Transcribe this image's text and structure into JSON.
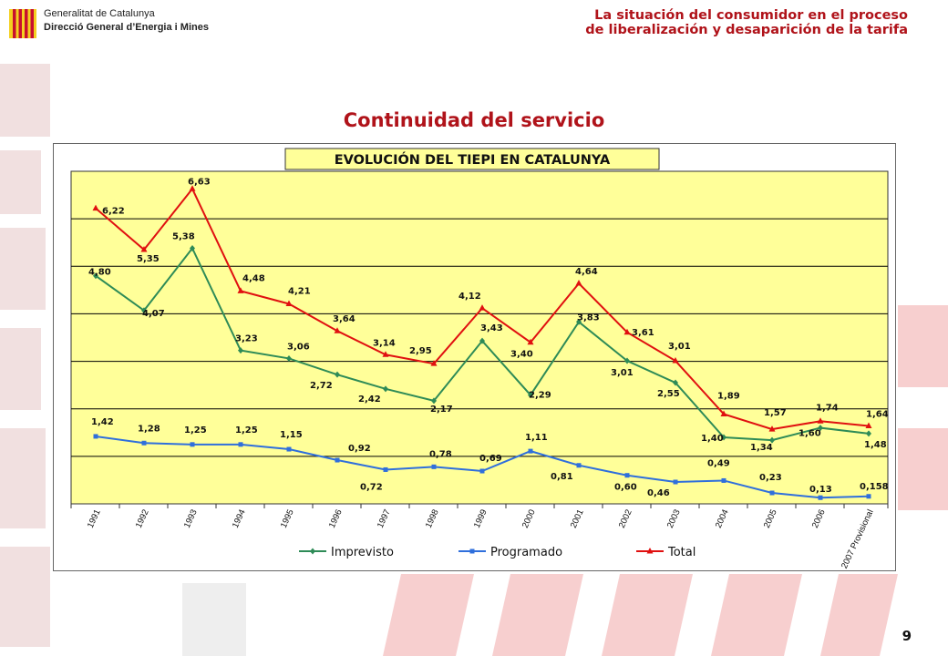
{
  "header": {
    "org_line1": "Generalitat de Catalunya",
    "org_line2": "Direcció General d’Energia i Mines",
    "title_line1": "La situación del consumidor en el proceso",
    "title_line2": "de liberalización y desaparición de la tarifa"
  },
  "slide": {
    "title": "Continuidad del servicio",
    "page_number": "9"
  },
  "colors": {
    "accent": "#b0131a",
    "plot_bg": "#ffff99",
    "imprevisto": "#2e8b57",
    "programado": "#2f6fdc",
    "total": "#e01010"
  },
  "chart_data": {
    "type": "line",
    "title": "EVOLUCIÓN DEL TIEPI EN CATALUNYA",
    "xlabel": "",
    "ylabel": "",
    "categories": [
      "1991",
      "1992",
      "1993",
      "1994",
      "1995",
      "1996",
      "1997",
      "1998",
      "1999",
      "2000",
      "2001",
      "2002",
      "2003",
      "2004",
      "2005",
      "2006",
      "2007 Provisional"
    ],
    "ylim": [
      0,
      7
    ],
    "grid": true,
    "legend_position": "bottom",
    "series": [
      {
        "name": "Imprevisto",
        "values": [
          4.8,
          4.07,
          5.38,
          3.23,
          3.06,
          2.72,
          2.42,
          2.17,
          3.43,
          2.29,
          3.83,
          3.01,
          2.55,
          1.4,
          1.34,
          1.6,
          1.48
        ],
        "labels": [
          "4,80",
          "4,07",
          "5,38",
          "3,23",
          "3,06",
          "2,72",
          "2,42",
          "2,17",
          "3,43",
          "2,29",
          "3,83",
          "3,01",
          "2,55",
          "1,40",
          "1,34",
          "1,60",
          "1,48"
        ]
      },
      {
        "name": "Programado",
        "values": [
          1.42,
          1.28,
          1.25,
          1.25,
          1.15,
          0.92,
          0.72,
          0.78,
          0.69,
          1.11,
          0.81,
          0.6,
          0.46,
          0.49,
          0.23,
          0.13,
          0.158
        ],
        "labels": [
          "1,42",
          "1,28",
          "1,25",
          "1,25",
          "1,15",
          "0,92",
          "0,72",
          "0,78",
          "0,69",
          "1,11",
          "0,81",
          "0,60",
          "0,46",
          "0,49",
          "0,23",
          "0,13",
          "0,158"
        ]
      },
      {
        "name": "Total",
        "values": [
          6.22,
          5.35,
          6.63,
          4.48,
          4.21,
          3.64,
          3.14,
          2.95,
          4.12,
          3.4,
          4.64,
          3.61,
          3.01,
          1.89,
          1.57,
          1.74,
          1.64
        ],
        "labels": [
          "6,22",
          "5,35",
          "6,63",
          "4,48",
          "4,21",
          "3,64",
          "3,14",
          "2,95",
          "4,12",
          "3,40",
          "4,64",
          "3,61",
          "3,01",
          "1,89",
          "1,57",
          "1,74",
          "1,64"
        ]
      }
    ]
  }
}
